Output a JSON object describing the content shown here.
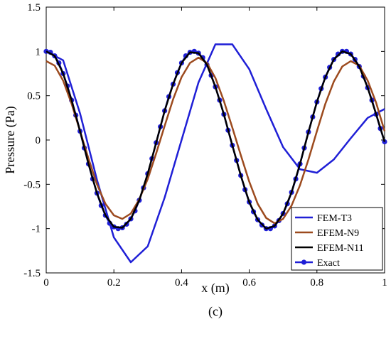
{
  "caption": "(c)",
  "chart_data": {
    "type": "line",
    "title": "",
    "xlabel": "x (m)",
    "ylabel": "Pressure (Pa)",
    "xlim": [
      0,
      1
    ],
    "ylim": [
      -1.5,
      1.5
    ],
    "xticks": [
      0,
      0.2,
      0.4,
      0.6,
      0.8,
      1
    ],
    "xtick_labels": [
      "0",
      "0.2",
      "0.4",
      "0.6",
      "0.8",
      "1"
    ],
    "yticks": [
      -1.5,
      -1,
      -0.5,
      0,
      0.5,
      1,
      1.5
    ],
    "ytick_labels": [
      "-1.5",
      "-1",
      "-0.5",
      "0",
      "0.5",
      "1",
      "1.5"
    ],
    "grid": false,
    "legend_position": "bottom-right",
    "series": [
      {
        "name": "FEM-T3",
        "color": "#1f1fd6",
        "marker": "none",
        "x": [
          0,
          0.05,
          0.1,
          0.15,
          0.2,
          0.25,
          0.3,
          0.35,
          0.4,
          0.45,
          0.5,
          0.55,
          0.6,
          0.65,
          0.7,
          0.75,
          0.8,
          0.85,
          0.9,
          0.95,
          1.0
        ],
        "y": [
          1.0,
          0.9,
          0.3,
          -0.45,
          -1.1,
          -1.38,
          -1.2,
          -0.65,
          0.0,
          0.65,
          1.08,
          1.08,
          0.8,
          0.35,
          -0.08,
          -0.33,
          -0.37,
          -0.22,
          0.02,
          0.25,
          0.35
        ]
      },
      {
        "name": "EFEM-N9",
        "color": "#9c4a1e",
        "marker": "none",
        "x": [
          0,
          0.025,
          0.05,
          0.075,
          0.1,
          0.125,
          0.15,
          0.175,
          0.2,
          0.225,
          0.25,
          0.275,
          0.3,
          0.325,
          0.35,
          0.375,
          0.4,
          0.425,
          0.45,
          0.475,
          0.5,
          0.525,
          0.55,
          0.575,
          0.6,
          0.625,
          0.65,
          0.675,
          0.7,
          0.725,
          0.75,
          0.775,
          0.8,
          0.825,
          0.85,
          0.875,
          0.9,
          0.925,
          0.95,
          0.975,
          1.0
        ],
        "y": [
          0.89,
          0.84,
          0.67,
          0.41,
          0.1,
          -0.21,
          -0.5,
          -0.72,
          -0.85,
          -0.89,
          -0.83,
          -0.67,
          -0.44,
          -0.15,
          0.16,
          0.46,
          0.71,
          0.87,
          0.93,
          0.87,
          0.7,
          0.44,
          0.14,
          -0.17,
          -0.47,
          -0.72,
          -0.88,
          -0.94,
          -0.89,
          -0.74,
          -0.51,
          -0.22,
          0.1,
          0.41,
          0.66,
          0.83,
          0.89,
          0.84,
          0.67,
          0.42,
          0.1
        ]
      },
      {
        "name": "EFEM-N11",
        "color": "#000000",
        "marker": "none",
        "x": [
          0,
          0.025,
          0.05,
          0.075,
          0.1,
          0.125,
          0.15,
          0.175,
          0.2,
          0.225,
          0.25,
          0.275,
          0.3,
          0.325,
          0.35,
          0.375,
          0.4,
          0.425,
          0.45,
          0.475,
          0.5,
          0.525,
          0.55,
          0.575,
          0.6,
          0.625,
          0.65,
          0.675,
          0.7,
          0.725,
          0.75,
          0.775,
          0.8,
          0.825,
          0.85,
          0.875,
          0.9,
          0.925,
          0.95,
          0.975,
          1.0
        ],
        "y": [
          1.0,
          0.95,
          0.75,
          0.45,
          0.1,
          -0.27,
          -0.6,
          -0.85,
          -0.98,
          -0.99,
          -0.89,
          -0.68,
          -0.38,
          -0.03,
          0.33,
          0.63,
          0.87,
          0.99,
          0.98,
          0.85,
          0.6,
          0.29,
          -0.06,
          -0.4,
          -0.7,
          -0.9,
          -1.0,
          -0.97,
          -0.83,
          -0.59,
          -0.27,
          0.09,
          0.43,
          0.71,
          0.91,
          1.0,
          0.97,
          0.83,
          0.59,
          0.29,
          -0.02
        ]
      },
      {
        "name": "Exact",
        "color": "#1f1fd6",
        "marker": "circle",
        "x": [
          0,
          0.0125,
          0.025,
          0.0375,
          0.05,
          0.0625,
          0.075,
          0.0875,
          0.1,
          0.1125,
          0.125,
          0.1375,
          0.15,
          0.1625,
          0.175,
          0.1875,
          0.2,
          0.2125,
          0.225,
          0.2375,
          0.25,
          0.2625,
          0.275,
          0.2875,
          0.3,
          0.3125,
          0.325,
          0.3375,
          0.35,
          0.3625,
          0.375,
          0.3875,
          0.4,
          0.4125,
          0.425,
          0.4375,
          0.45,
          0.4625,
          0.475,
          0.4875,
          0.5,
          0.5125,
          0.525,
          0.5375,
          0.55,
          0.5625,
          0.575,
          0.5875,
          0.6,
          0.6125,
          0.625,
          0.6375,
          0.65,
          0.6625,
          0.675,
          0.6875,
          0.7,
          0.7125,
          0.725,
          0.7375,
          0.75,
          0.7625,
          0.775,
          0.7875,
          0.8,
          0.8125,
          0.825,
          0.8375,
          0.85,
          0.8625,
          0.875,
          0.8875,
          0.9,
          0.9125,
          0.925,
          0.9375,
          0.95,
          0.9625,
          0.975,
          0.9875,
          1.0
        ],
        "y": [
          1.0,
          0.99,
          0.95,
          0.87,
          0.75,
          0.61,
          0.45,
          0.28,
          0.1,
          -0.09,
          -0.27,
          -0.44,
          -0.6,
          -0.74,
          -0.85,
          -0.94,
          -0.98,
          -1.0,
          -0.99,
          -0.95,
          -0.89,
          -0.8,
          -0.68,
          -0.54,
          -0.38,
          -0.21,
          -0.03,
          0.15,
          0.33,
          0.49,
          0.63,
          0.76,
          0.87,
          0.95,
          0.99,
          1.0,
          0.98,
          0.93,
          0.85,
          0.73,
          0.6,
          0.45,
          0.29,
          0.11,
          -0.06,
          -0.23,
          -0.4,
          -0.56,
          -0.7,
          -0.81,
          -0.9,
          -0.96,
          -1.0,
          -1.0,
          -0.97,
          -0.91,
          -0.83,
          -0.72,
          -0.59,
          -0.44,
          -0.27,
          -0.09,
          0.09,
          0.26,
          0.43,
          0.58,
          0.71,
          0.82,
          0.91,
          0.97,
          1.0,
          1.0,
          0.97,
          0.91,
          0.83,
          0.72,
          0.59,
          0.45,
          0.29,
          0.13,
          -0.02
        ]
      }
    ]
  }
}
